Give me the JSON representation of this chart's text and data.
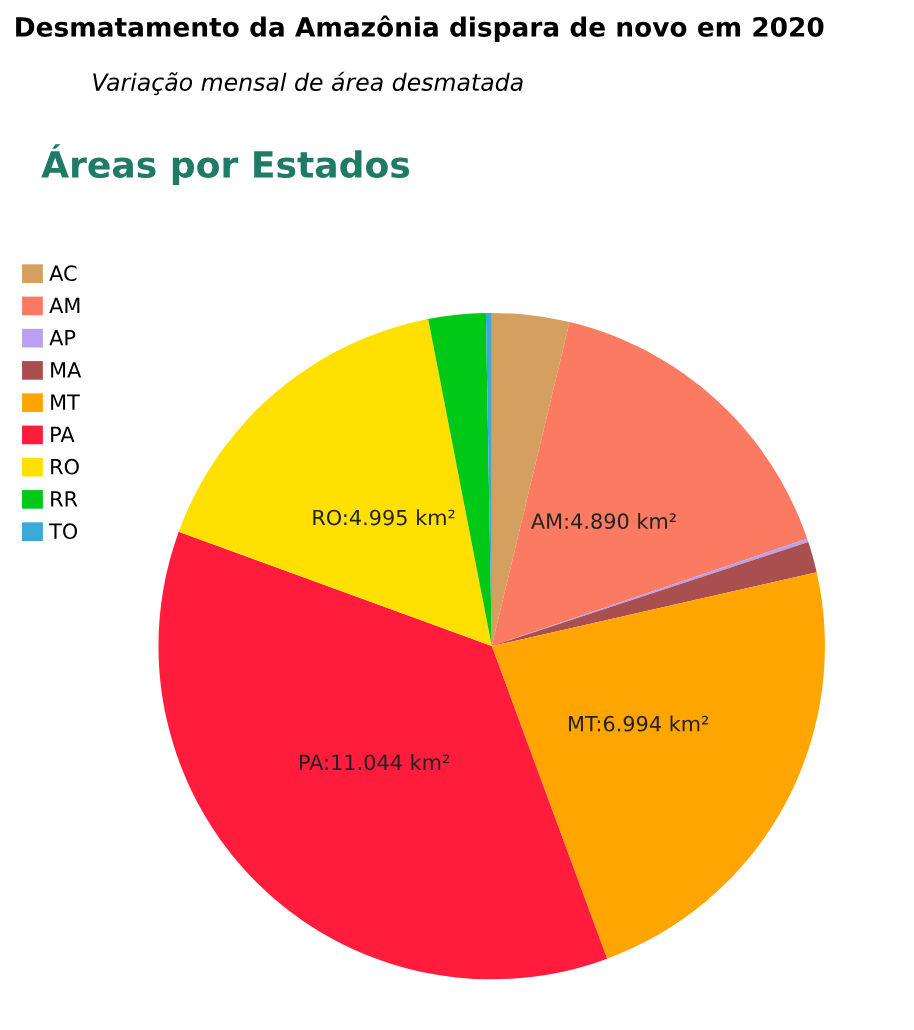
{
  "chart_data": {
    "type": "pie",
    "title": "Desmatamento da Amazônia dispara de novo em 2020",
    "subtitle": "Variação mensal de área desmatada",
    "annotations": [
      "Áreas por Estados"
    ],
    "categories": [
      "AC",
      "AM",
      "AP",
      "MA",
      "MT",
      "PA",
      "RO",
      "RR",
      "TO"
    ],
    "values": [
      1144,
      4890,
      51,
      458,
      6994,
      11044,
      4995,
      847,
      85
    ],
    "colors": [
      "#d4a060",
      "#fb7a62",
      "#b9a0f0",
      "#a94f4f",
      "#ffa500",
      "#ff1c3c",
      "#ffe000",
      "#00c817",
      "#3aa8d8"
    ],
    "value_labels": [
      null,
      "AM:4.890 km²",
      null,
      null,
      "MT:6.994 km²",
      "PA:11.044 km²",
      "RO:4.995 km²",
      null,
      null
    ],
    "legend": "left"
  }
}
